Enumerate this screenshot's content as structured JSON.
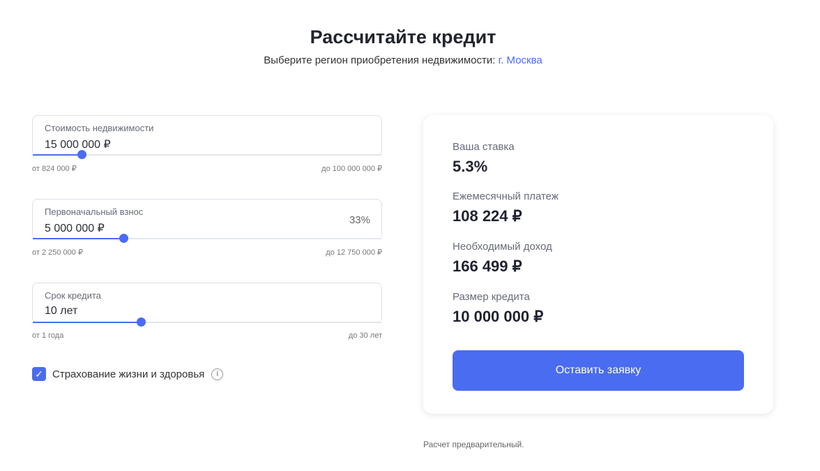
{
  "header": {
    "title": "Рассчитайте кредит",
    "subtitle": "Выберите регион приобретения недвижимости:",
    "region": "г. Москва"
  },
  "fields": [
    {
      "label": "Стоимость недвижимости",
      "value": "15 000 000 ₽",
      "min": "от 824 000 ₽",
      "max": "до 100 000 000 ₽",
      "slider_percent": 14
    },
    {
      "label": "Первоначальный взнос",
      "value": "5 000 000 ₽",
      "percent": "33%",
      "min": "от 2 250 000 ₽",
      "max": "до 12 750 000 ₽",
      "slider_percent": 26
    },
    {
      "label": "Срок кредита",
      "value": "10 лет",
      "min": "от 1 года",
      "max": "до 30 лет",
      "slider_percent": 31
    }
  ],
  "insurance": {
    "label": "Страхование жизни и здоровья",
    "checked": true
  },
  "result": {
    "rate_label": "Ваша ставка",
    "rate": "5.3%",
    "payment_label": "Ежемесячный платеж",
    "payment": "108 224 ₽",
    "income_label": "Необходимый доход",
    "income": "166 499 ₽",
    "loan_label": "Размер кредита",
    "loan": "10 000 000 ₽",
    "button": "Оставить заявку"
  },
  "note": "Расчет предварительный.",
  "colors": {
    "accent": "#4a6cf0"
  }
}
